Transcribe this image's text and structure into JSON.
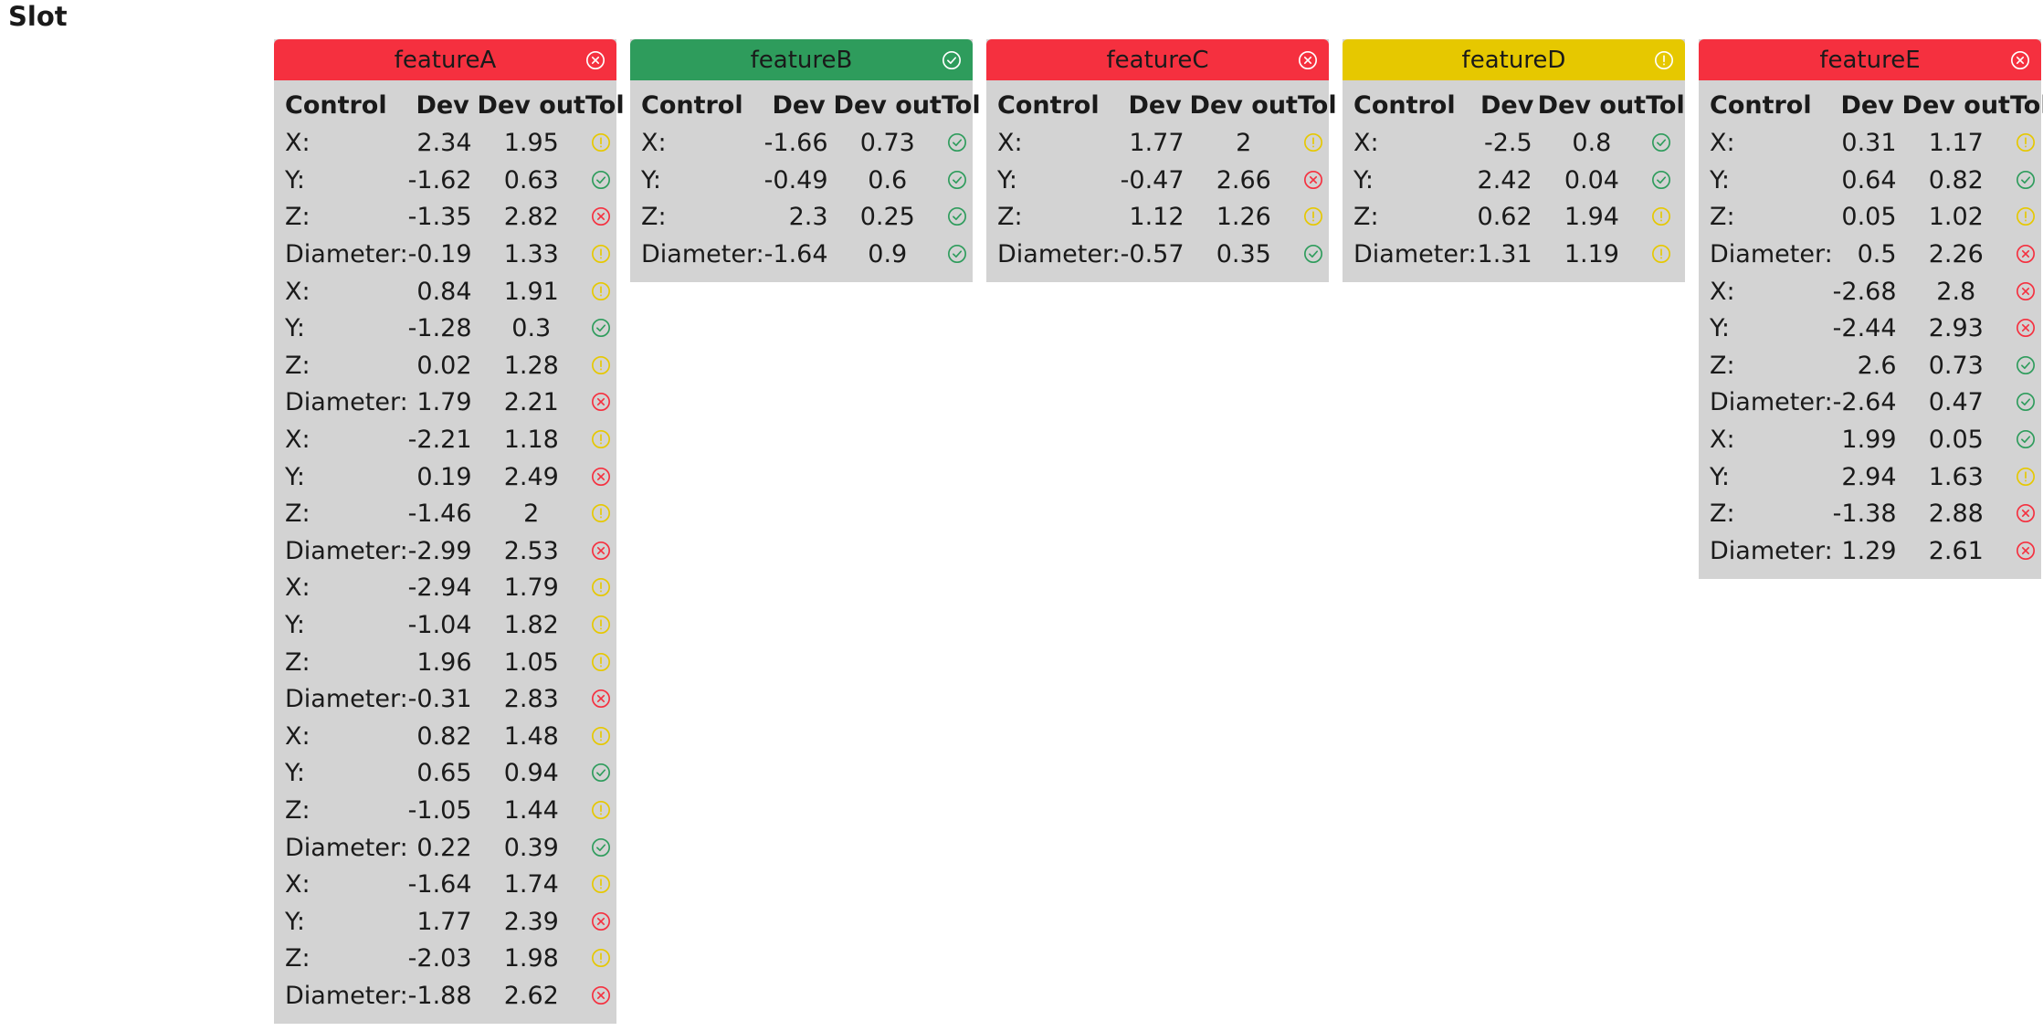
{
  "title": "Slot",
  "colors": {
    "fail": "#f5303f",
    "pass": "#2e9c5c",
    "warn": "#e6c800",
    "panel": "#d3d3d3"
  },
  "table_headers": [
    "Control",
    "Dev",
    "Dev out",
    "Tol"
  ],
  "features": [
    {
      "name": "featureA",
      "status": "fail",
      "rows": [
        {
          "control": "X:",
          "dev": "2.34",
          "dev_out": "1.95",
          "tol": "warn"
        },
        {
          "control": "Y:",
          "dev": "-1.62",
          "dev_out": "0.63",
          "tol": "pass"
        },
        {
          "control": "Z:",
          "dev": "-1.35",
          "dev_out": "2.82",
          "tol": "fail"
        },
        {
          "control": "Diameter:",
          "dev": "-0.19",
          "dev_out": "1.33",
          "tol": "warn"
        },
        {
          "control": "X:",
          "dev": "0.84",
          "dev_out": "1.91",
          "tol": "warn"
        },
        {
          "control": "Y:",
          "dev": "-1.28",
          "dev_out": "0.3",
          "tol": "pass"
        },
        {
          "control": "Z:",
          "dev": "0.02",
          "dev_out": "1.28",
          "tol": "warn"
        },
        {
          "control": "Diameter:",
          "dev": "1.79",
          "dev_out": "2.21",
          "tol": "fail"
        },
        {
          "control": "X:",
          "dev": "-2.21",
          "dev_out": "1.18",
          "tol": "warn"
        },
        {
          "control": "Y:",
          "dev": "0.19",
          "dev_out": "2.49",
          "tol": "fail"
        },
        {
          "control": "Z:",
          "dev": "-1.46",
          "dev_out": "2",
          "tol": "warn"
        },
        {
          "control": "Diameter:",
          "dev": "-2.99",
          "dev_out": "2.53",
          "tol": "fail"
        },
        {
          "control": "X:",
          "dev": "-2.94",
          "dev_out": "1.79",
          "tol": "warn"
        },
        {
          "control": "Y:",
          "dev": "-1.04",
          "dev_out": "1.82",
          "tol": "warn"
        },
        {
          "control": "Z:",
          "dev": "1.96",
          "dev_out": "1.05",
          "tol": "warn"
        },
        {
          "control": "Diameter:",
          "dev": "-0.31",
          "dev_out": "2.83",
          "tol": "fail"
        },
        {
          "control": "X:",
          "dev": "0.82",
          "dev_out": "1.48",
          "tol": "warn"
        },
        {
          "control": "Y:",
          "dev": "0.65",
          "dev_out": "0.94",
          "tol": "pass"
        },
        {
          "control": "Z:",
          "dev": "-1.05",
          "dev_out": "1.44",
          "tol": "warn"
        },
        {
          "control": "Diameter:",
          "dev": "0.22",
          "dev_out": "0.39",
          "tol": "pass"
        },
        {
          "control": "X:",
          "dev": "-1.64",
          "dev_out": "1.74",
          "tol": "warn"
        },
        {
          "control": "Y:",
          "dev": "1.77",
          "dev_out": "2.39",
          "tol": "fail"
        },
        {
          "control": "Z:",
          "dev": "-2.03",
          "dev_out": "1.98",
          "tol": "warn"
        },
        {
          "control": "Diameter:",
          "dev": "-1.88",
          "dev_out": "2.62",
          "tol": "fail"
        }
      ]
    },
    {
      "name": "featureB",
      "status": "pass",
      "rows": [
        {
          "control": "X:",
          "dev": "-1.66",
          "dev_out": "0.73",
          "tol": "pass"
        },
        {
          "control": "Y:",
          "dev": "-0.49",
          "dev_out": "0.6",
          "tol": "pass"
        },
        {
          "control": "Z:",
          "dev": "2.3",
          "dev_out": "0.25",
          "tol": "pass"
        },
        {
          "control": "Diameter:",
          "dev": "-1.64",
          "dev_out": "0.9",
          "tol": "pass"
        }
      ]
    },
    {
      "name": "featureC",
      "status": "fail",
      "rows": [
        {
          "control": "X:",
          "dev": "1.77",
          "dev_out": "2",
          "tol": "warn"
        },
        {
          "control": "Y:",
          "dev": "-0.47",
          "dev_out": "2.66",
          "tol": "fail"
        },
        {
          "control": "Z:",
          "dev": "1.12",
          "dev_out": "1.26",
          "tol": "warn"
        },
        {
          "control": "Diameter:",
          "dev": "-0.57",
          "dev_out": "0.35",
          "tol": "pass"
        }
      ]
    },
    {
      "name": "featureD",
      "status": "warn",
      "rows": [
        {
          "control": "X:",
          "dev": "-2.5",
          "dev_out": "0.8",
          "tol": "pass"
        },
        {
          "control": "Y:",
          "dev": "2.42",
          "dev_out": "0.04",
          "tol": "pass"
        },
        {
          "control": "Z:",
          "dev": "0.62",
          "dev_out": "1.94",
          "tol": "warn"
        },
        {
          "control": "Diameter:",
          "dev": "1.31",
          "dev_out": "1.19",
          "tol": "warn"
        }
      ]
    },
    {
      "name": "featureE",
      "status": "fail",
      "rows": [
        {
          "control": "X:",
          "dev": "0.31",
          "dev_out": "1.17",
          "tol": "warn"
        },
        {
          "control": "Y:",
          "dev": "0.64",
          "dev_out": "0.82",
          "tol": "pass"
        },
        {
          "control": "Z:",
          "dev": "0.05",
          "dev_out": "1.02",
          "tol": "warn"
        },
        {
          "control": "Diameter:",
          "dev": "0.5",
          "dev_out": "2.26",
          "tol": "fail"
        },
        {
          "control": "X:",
          "dev": "-2.68",
          "dev_out": "2.8",
          "tol": "fail"
        },
        {
          "control": "Y:",
          "dev": "-2.44",
          "dev_out": "2.93",
          "tol": "fail"
        },
        {
          "control": "Z:",
          "dev": "2.6",
          "dev_out": "0.73",
          "tol": "pass"
        },
        {
          "control": "Diameter:",
          "dev": "-2.64",
          "dev_out": "0.47",
          "tol": "pass"
        },
        {
          "control": "X:",
          "dev": "1.99",
          "dev_out": "0.05",
          "tol": "pass"
        },
        {
          "control": "Y:",
          "dev": "2.94",
          "dev_out": "1.63",
          "tol": "warn"
        },
        {
          "control": "Z:",
          "dev": "-1.38",
          "dev_out": "2.88",
          "tol": "fail"
        },
        {
          "control": "Diameter:",
          "dev": "1.29",
          "dev_out": "2.61",
          "tol": "fail"
        }
      ]
    }
  ]
}
